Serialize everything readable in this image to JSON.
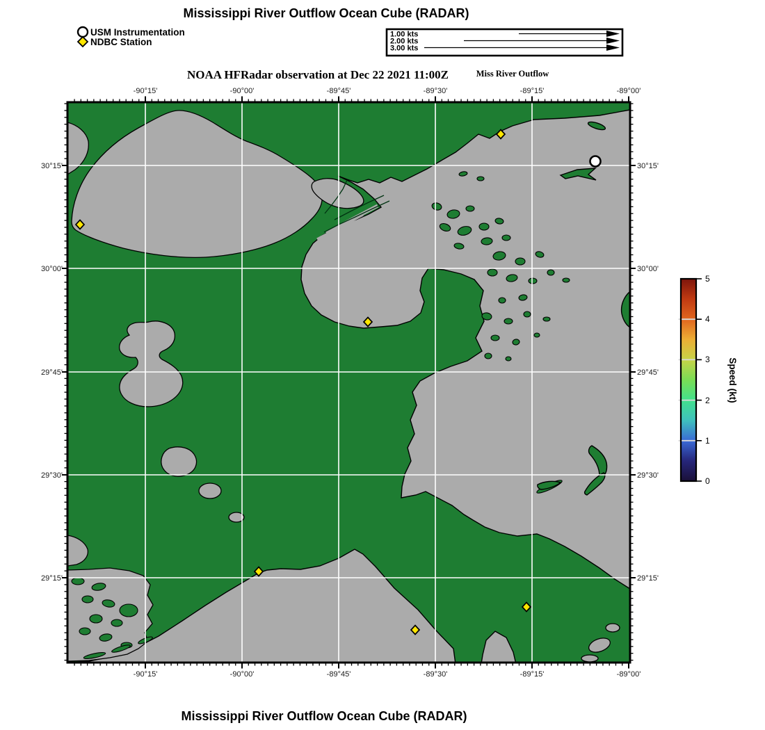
{
  "header": {
    "title": "Mississippi River Outflow Ocean Cube (RADAR)",
    "legend": {
      "usm_label": "USM Instrumentation",
      "ndbc_label": "NDBC Station"
    },
    "speed_scale": {
      "rows": [
        "1.00 kts",
        "2.00 kts",
        "3.00 kts"
      ]
    }
  },
  "map": {
    "subtitle": "NOAA HFRadar observation at Dec 22 2021 11:00Z",
    "region_label": "Miss River Outflow",
    "lon_ticks": [
      "-90°15'",
      "-90°00'",
      "-89°45'",
      "-89°30'",
      "-89°15'",
      "-89°00'"
    ],
    "lat_ticks": [
      "30°15'",
      "30°00'",
      "29°45'",
      "29°30'",
      "29°15'"
    ]
  },
  "colorbar": {
    "label": "Speed (kt)",
    "ticks": [
      "0",
      "1",
      "2",
      "3",
      "4",
      "5"
    ]
  },
  "footer": {
    "title": "Mississippi River Outflow Ocean Cube (RADAR)"
  },
  "colors": {
    "land": "#1e7d32",
    "water": "#ababab",
    "gridlines": "#ffffff",
    "ndbc_marker": "#ffe600",
    "usm_marker": "#ffffff",
    "colorbar_scale": [
      "#1a1038",
      "#26267a",
      "#3a6ad6",
      "#3fc0bd",
      "#42e08c",
      "#7add55",
      "#c6d348",
      "#ecae35",
      "#e0661f",
      "#c03a12",
      "#7d150c"
    ]
  },
  "chart_data": {
    "type": "map",
    "title": "Mississippi River Outflow Ocean Cube (RADAR)",
    "observation_time": "Dec 22 2021 11:00Z",
    "extent": {
      "lon_min": -90.45,
      "lon_max": -89.0,
      "lat_min": 29.04,
      "lat_max": 30.4
    },
    "graticule_spacing_arcmin": 15,
    "colorbar": {
      "label": "Speed (kt)",
      "min": 0,
      "max": 5,
      "tick_step": 1
    },
    "vector_scale_kts": [
      1.0,
      2.0,
      3.0
    ],
    "radar_vectors_visible": 0,
    "markers": {
      "usm_instrumentation": [
        {
          "lon": -89.09,
          "lat": 30.26
        }
      ],
      "ndbc_stations": [
        {
          "lon": -89.33,
          "lat": 30.33
        },
        {
          "lon": -90.42,
          "lat": 30.11
        },
        {
          "lon": -89.67,
          "lat": 29.87
        },
        {
          "lon": -89.96,
          "lat": 29.26
        },
        {
          "lon": -89.26,
          "lat": 29.18
        },
        {
          "lon": -89.55,
          "lat": 29.12
        }
      ]
    }
  }
}
